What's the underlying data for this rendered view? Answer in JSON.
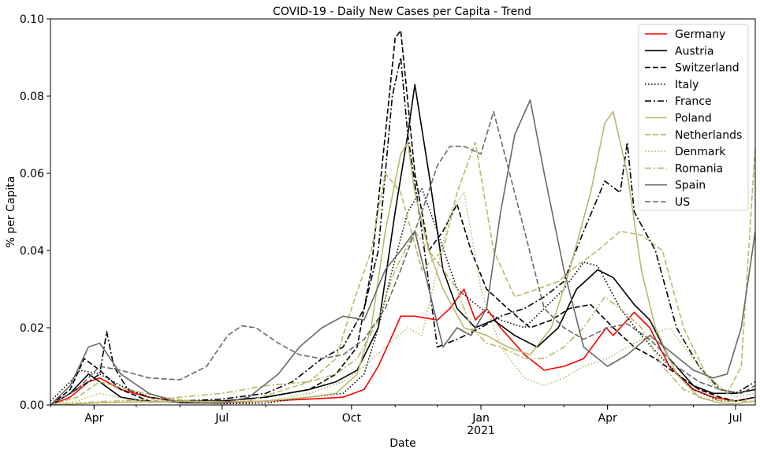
{
  "chart_data": {
    "type": "line",
    "title": "COVID-19 - Daily New Cases per Capita - Trend",
    "xlabel": "Date",
    "ylabel": "% per Capita",
    "ylim": [
      0,
      0.1
    ],
    "yticks": [
      "0.00",
      "0.02",
      "0.04",
      "0.06",
      "0.08",
      "0.10"
    ],
    "xticks": [
      {
        "date": "2020-04-01",
        "label": "Apr",
        "sublabel": ""
      },
      {
        "date": "2020-07-01",
        "label": "Jul",
        "sublabel": ""
      },
      {
        "date": "2020-10-01",
        "label": "Oct",
        "sublabel": ""
      },
      {
        "date": "2021-01-01",
        "label": "Jan",
        "sublabel": "2021"
      },
      {
        "date": "2021-04-01",
        "label": "Apr",
        "sublabel": ""
      },
      {
        "date": "2021-07-01",
        "label": "Jul",
        "sublabel": ""
      }
    ],
    "xlim": [
      "2020-03-01",
      "2021-07-15"
    ],
    "grid": false,
    "legend_position": "top-right",
    "series": [
      {
        "name": "Germany",
        "color": "#ff0000",
        "dash": "solid",
        "x": [
          "2020-03-01",
          "2020-03-15",
          "2020-03-28",
          "2020-04-05",
          "2020-04-20",
          "2020-05-10",
          "2020-06-01",
          "2020-07-01",
          "2020-08-01",
          "2020-09-01",
          "2020-09-25",
          "2020-10-10",
          "2020-10-20",
          "2020-10-30",
          "2020-11-05",
          "2020-11-15",
          "2020-12-01",
          "2020-12-10",
          "2020-12-20",
          "2020-12-28",
          "2021-01-05",
          "2021-01-15",
          "2021-02-01",
          "2021-02-15",
          "2021-03-01",
          "2021-03-15",
          "2021-03-31",
          "2021-04-05",
          "2021-04-20",
          "2021-05-01",
          "2021-05-15",
          "2021-06-01",
          "2021-06-15",
          "2021-07-01",
          "2021-07-15"
        ],
        "y": [
          0,
          0.002,
          0.006,
          0.007,
          0.004,
          0.002,
          0.0008,
          0.0005,
          0.001,
          0.0015,
          0.002,
          0.004,
          0.01,
          0.018,
          0.023,
          0.023,
          0.022,
          0.025,
          0.03,
          0.022,
          0.025,
          0.02,
          0.013,
          0.009,
          0.01,
          0.012,
          0.02,
          0.018,
          0.024,
          0.02,
          0.01,
          0.004,
          0.002,
          0.001,
          0.002
        ]
      },
      {
        "name": "Austria",
        "color": "#000000",
        "dash": "solid",
        "x": [
          "2020-03-01",
          "2020-03-15",
          "2020-03-28",
          "2020-04-05",
          "2020-04-20",
          "2020-05-10",
          "2020-06-01",
          "2020-07-01",
          "2020-08-01",
          "2020-09-01",
          "2020-09-20",
          "2020-10-05",
          "2020-10-20",
          "2020-11-01",
          "2020-11-10",
          "2020-11-15",
          "2020-11-25",
          "2020-12-05",
          "2020-12-15",
          "2020-12-28",
          "2021-01-10",
          "2021-01-25",
          "2021-02-10",
          "2021-02-25",
          "2021-03-10",
          "2021-03-25",
          "2021-04-05",
          "2021-04-20",
          "2021-05-01",
          "2021-05-15",
          "2021-06-01",
          "2021-06-15",
          "2021-07-01",
          "2021-07-15"
        ],
        "y": [
          0,
          0.003,
          0.008,
          0.006,
          0.002,
          0.0008,
          0.001,
          0.001,
          0.002,
          0.004,
          0.006,
          0.009,
          0.02,
          0.05,
          0.07,
          0.083,
          0.06,
          0.035,
          0.025,
          0.02,
          0.022,
          0.018,
          0.015,
          0.02,
          0.03,
          0.035,
          0.033,
          0.026,
          0.022,
          0.012,
          0.005,
          0.003,
          0.003,
          0.004
        ]
      },
      {
        "name": "Switzerland",
        "color": "#000000",
        "dash": "dashed",
        "x": [
          "2020-03-01",
          "2020-03-15",
          "2020-03-25",
          "2020-04-05",
          "2020-04-20",
          "2020-05-10",
          "2020-06-01",
          "2020-07-01",
          "2020-08-01",
          "2020-09-01",
          "2020-09-20",
          "2020-10-05",
          "2020-10-15",
          "2020-10-25",
          "2020-11-01",
          "2020-11-05",
          "2020-11-15",
          "2020-11-25",
          "2020-12-05",
          "2020-12-15",
          "2020-12-25",
          "2021-01-05",
          "2021-01-20",
          "2021-02-05",
          "2021-02-20",
          "2021-03-05",
          "2021-03-20",
          "2021-04-05",
          "2021-04-20",
          "2021-05-05",
          "2021-05-20",
          "2021-06-05",
          "2021-06-20",
          "2021-07-01",
          "2021-07-15"
        ],
        "y": [
          0,
          0.004,
          0.012,
          0.009,
          0.004,
          0.001,
          0.0008,
          0.001,
          0.002,
          0.004,
          0.008,
          0.015,
          0.035,
          0.07,
          0.095,
          0.097,
          0.06,
          0.04,
          0.045,
          0.052,
          0.04,
          0.03,
          0.025,
          0.02,
          0.022,
          0.025,
          0.026,
          0.02,
          0.015,
          0.012,
          0.008,
          0.004,
          0.002,
          0.001,
          0.002
        ]
      },
      {
        "name": "Italy",
        "color": "#000000",
        "dash": "dotted",
        "x": [
          "2020-03-01",
          "2020-03-15",
          "2020-03-22",
          "2020-04-05",
          "2020-04-20",
          "2020-05-10",
          "2020-06-01",
          "2020-07-01",
          "2020-08-01",
          "2020-09-01",
          "2020-09-25",
          "2020-10-10",
          "2020-10-20",
          "2020-10-30",
          "2020-11-10",
          "2020-11-20",
          "2020-12-01",
          "2020-12-15",
          "2021-01-01",
          "2021-01-15",
          "2021-02-01",
          "2021-02-15",
          "2021-03-01",
          "2021-03-15",
          "2021-03-25",
          "2021-04-10",
          "2021-04-25",
          "2021-05-10",
          "2021-06-01",
          "2021-06-20",
          "2021-07-01",
          "2021-07-15"
        ],
        "y": [
          0.001,
          0.006,
          0.009,
          0.008,
          0.005,
          0.002,
          0.0008,
          0.0003,
          0.0005,
          0.002,
          0.003,
          0.008,
          0.02,
          0.035,
          0.05,
          0.056,
          0.045,
          0.03,
          0.025,
          0.022,
          0.02,
          0.025,
          0.03,
          0.037,
          0.036,
          0.025,
          0.018,
          0.012,
          0.004,
          0.001,
          0.001,
          0.002
        ]
      },
      {
        "name": "France",
        "color": "#000000",
        "dash": "dashdot",
        "x": [
          "2020-03-01",
          "2020-03-15",
          "2020-03-28",
          "2020-04-05",
          "2020-04-10",
          "2020-04-15",
          "2020-04-25",
          "2020-05-10",
          "2020-06-01",
          "2020-07-01",
          "2020-08-01",
          "2020-08-20",
          "2020-09-10",
          "2020-09-25",
          "2020-10-10",
          "2020-10-20",
          "2020-10-30",
          "2020-11-05",
          "2020-11-10",
          "2020-11-20",
          "2020-12-01",
          "2020-12-15",
          "2021-01-01",
          "2021-01-15",
          "2021-02-01",
          "2021-02-15",
          "2021-03-01",
          "2021-03-15",
          "2021-03-30",
          "2021-04-10",
          "2021-04-15",
          "2021-04-20",
          "2021-05-05",
          "2021-05-20",
          "2021-06-05",
          "2021-06-20",
          "2021-07-01",
          "2021-07-15"
        ],
        "y": [
          0,
          0.003,
          0.006,
          0.008,
          0.019,
          0.01,
          0.004,
          0.002,
          0.001,
          0.0015,
          0.003,
          0.006,
          0.012,
          0.015,
          0.025,
          0.04,
          0.08,
          0.09,
          0.07,
          0.045,
          0.015,
          0.017,
          0.02,
          0.023,
          0.025,
          0.028,
          0.032,
          0.045,
          0.058,
          0.055,
          0.068,
          0.05,
          0.04,
          0.02,
          0.01,
          0.004,
          0.003,
          0.006
        ]
      },
      {
        "name": "Poland",
        "color": "#bdb76b",
        "dash": "solid",
        "x": [
          "2020-03-01",
          "2020-04-01",
          "2020-05-01",
          "2020-06-01",
          "2020-07-01",
          "2020-08-01",
          "2020-09-01",
          "2020-09-20",
          "2020-10-05",
          "2020-10-15",
          "2020-10-25",
          "2020-11-05",
          "2020-11-10",
          "2020-11-15",
          "2020-11-25",
          "2020-12-05",
          "2020-12-20",
          "2021-01-05",
          "2021-01-20",
          "2021-02-05",
          "2021-02-20",
          "2021-03-05",
          "2021-03-20",
          "2021-03-30",
          "2021-04-05",
          "2021-04-15",
          "2021-04-25",
          "2021-05-05",
          "2021-05-20",
          "2021-06-05",
          "2021-06-20",
          "2021-07-01",
          "2021-07-15"
        ],
        "y": [
          0,
          0.0005,
          0.0008,
          0.001,
          0.0008,
          0.001,
          0.002,
          0.003,
          0.008,
          0.02,
          0.045,
          0.065,
          0.068,
          0.055,
          0.04,
          0.03,
          0.02,
          0.018,
          0.015,
          0.013,
          0.02,
          0.035,
          0.055,
          0.073,
          0.076,
          0.06,
          0.035,
          0.02,
          0.008,
          0.002,
          0.0005,
          0.0003,
          0.001
        ]
      },
      {
        "name": "Netherlands",
        "color": "#bdb76b",
        "dash": "dashed",
        "x": [
          "2020-03-01",
          "2020-03-20",
          "2020-04-05",
          "2020-04-25",
          "2020-05-20",
          "2020-06-20",
          "2020-07-20",
          "2020-08-15",
          "2020-09-01",
          "2020-09-20",
          "2020-10-01",
          "2020-10-15",
          "2020-10-25",
          "2020-11-05",
          "2020-11-20",
          "2020-12-05",
          "2020-12-15",
          "2020-12-28",
          "2021-01-10",
          "2021-01-25",
          "2021-02-10",
          "2021-02-25",
          "2021-03-10",
          "2021-03-25",
          "2021-04-10",
          "2021-04-25",
          "2021-05-10",
          "2021-05-25",
          "2021-06-10",
          "2021-06-25",
          "2021-07-05",
          "2021-07-15"
        ],
        "y": [
          0,
          0.002,
          0.006,
          0.004,
          0.002,
          0.0005,
          0.001,
          0.004,
          0.006,
          0.012,
          0.025,
          0.04,
          0.06,
          0.055,
          0.035,
          0.04,
          0.055,
          0.068,
          0.04,
          0.028,
          0.03,
          0.032,
          0.036,
          0.04,
          0.045,
          0.044,
          0.04,
          0.02,
          0.008,
          0.003,
          0.01,
          0.067
        ]
      },
      {
        "name": "Denmark",
        "color": "#bdb76b",
        "dash": "dotted",
        "x": [
          "2020-03-01",
          "2020-03-20",
          "2020-04-05",
          "2020-05-01",
          "2020-06-01",
          "2020-07-01",
          "2020-08-01",
          "2020-09-01",
          "2020-09-25",
          "2020-10-10",
          "2020-10-25",
          "2020-11-10",
          "2020-11-20",
          "2020-12-01",
          "2020-12-10",
          "2020-12-20",
          "2021-01-01",
          "2021-01-15",
          "2021-02-01",
          "2021-02-15",
          "2021-03-01",
          "2021-03-15",
          "2021-04-01",
          "2021-04-15",
          "2021-05-01",
          "2021-05-15",
          "2021-06-01",
          "2021-06-15",
          "2021-07-01",
          "2021-07-15"
        ],
        "y": [
          0,
          0.001,
          0.003,
          0.001,
          0.0005,
          0.0005,
          0.001,
          0.003,
          0.006,
          0.01,
          0.015,
          0.02,
          0.018,
          0.035,
          0.05,
          0.055,
          0.03,
          0.015,
          0.007,
          0.005,
          0.007,
          0.01,
          0.012,
          0.015,
          0.018,
          0.02,
          0.012,
          0.005,
          0.002,
          0.003
        ]
      },
      {
        "name": "Romania",
        "color": "#bdb76b",
        "dash": "dashdot",
        "x": [
          "2020-03-01",
          "2020-04-01",
          "2020-05-01",
          "2020-06-01",
          "2020-07-01",
          "2020-08-01",
          "2020-09-01",
          "2020-09-20",
          "2020-10-05",
          "2020-10-20",
          "2020-11-01",
          "2020-11-15",
          "2020-11-25",
          "2020-12-05",
          "2020-12-15",
          "2020-12-25",
          "2021-01-05",
          "2021-01-15",
          "2021-02-01",
          "2021-02-15",
          "2021-03-01",
          "2021-03-15",
          "2021-03-30",
          "2021-04-10",
          "2021-04-25",
          "2021-05-10",
          "2021-05-25",
          "2021-06-10",
          "2021-06-25",
          "2021-07-05",
          "2021-07-15"
        ],
        "y": [
          0,
          0.0008,
          0.0012,
          0.002,
          0.003,
          0.005,
          0.006,
          0.008,
          0.012,
          0.022,
          0.035,
          0.045,
          0.04,
          0.035,
          0.03,
          0.02,
          0.016,
          0.015,
          0.012,
          0.012,
          0.015,
          0.02,
          0.028,
          0.025,
          0.02,
          0.01,
          0.004,
          0.0015,
          0.001,
          0.001,
          0.001
        ]
      },
      {
        "name": "Spain",
        "color": "#696969",
        "dash": "solid",
        "x": [
          "2020-03-01",
          "2020-03-15",
          "2020-03-28",
          "2020-04-05",
          "2020-04-20",
          "2020-05-10",
          "2020-06-01",
          "2020-07-01",
          "2020-07-20",
          "2020-08-10",
          "2020-08-25",
          "2020-09-10",
          "2020-09-25",
          "2020-10-10",
          "2020-10-25",
          "2020-11-05",
          "2020-11-15",
          "2020-11-25",
          "2020-12-05",
          "2020-12-15",
          "2020-12-25",
          "2021-01-05",
          "2021-01-15",
          "2021-01-25",
          "2021-02-05",
          "2021-02-15",
          "2021-03-01",
          "2021-03-15",
          "2021-04-01",
          "2021-04-15",
          "2021-05-01",
          "2021-05-15",
          "2021-06-01",
          "2021-06-15",
          "2021-06-25",
          "2021-07-05",
          "2021-07-15"
        ],
        "y": [
          0,
          0.005,
          0.015,
          0.016,
          0.008,
          0.003,
          0.0005,
          0.0005,
          0.002,
          0.008,
          0.015,
          0.02,
          0.023,
          0.022,
          0.035,
          0.04,
          0.045,
          0.03,
          0.015,
          0.02,
          0.018,
          0.025,
          0.05,
          0.07,
          0.079,
          0.06,
          0.035,
          0.015,
          0.01,
          0.013,
          0.018,
          0.014,
          0.009,
          0.007,
          0.008,
          0.02,
          0.045
        ]
      },
      {
        "name": "US",
        "color": "#696969",
        "dash": "dashed",
        "x": [
          "2020-03-01",
          "2020-03-20",
          "2020-04-05",
          "2020-04-20",
          "2020-05-10",
          "2020-06-01",
          "2020-06-20",
          "2020-07-05",
          "2020-07-15",
          "2020-07-25",
          "2020-08-10",
          "2020-08-25",
          "2020-09-10",
          "2020-09-25",
          "2020-10-10",
          "2020-10-25",
          "2020-11-05",
          "2020-11-20",
          "2020-12-01",
          "2020-12-10",
          "2020-12-20",
          "2021-01-01",
          "2021-01-10",
          "2021-01-20",
          "2021-02-01",
          "2021-02-15",
          "2021-03-01",
          "2021-03-15",
          "2021-04-01",
          "2021-04-15",
          "2021-05-01",
          "2021-05-20",
          "2021-06-05",
          "2021-06-20",
          "2021-07-05",
          "2021-07-15"
        ],
        "y": [
          0,
          0.004,
          0.01,
          0.009,
          0.007,
          0.0065,
          0.01,
          0.018,
          0.0205,
          0.02,
          0.016,
          0.013,
          0.012,
          0.013,
          0.017,
          0.025,
          0.035,
          0.05,
          0.062,
          0.067,
          0.067,
          0.065,
          0.076,
          0.062,
          0.045,
          0.025,
          0.02,
          0.017,
          0.02,
          0.021,
          0.017,
          0.01,
          0.006,
          0.004,
          0.003,
          0.005
        ]
      }
    ]
  }
}
